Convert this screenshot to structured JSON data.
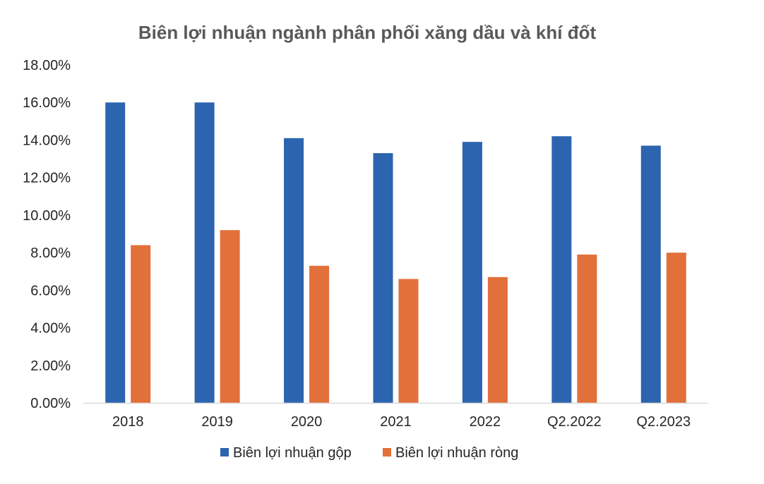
{
  "chart_data": {
    "type": "bar",
    "title": "Biên lợi nhuận ngành phân phối xăng dầu và khí đốt",
    "categories": [
      "2018",
      "2019",
      "2020",
      "2021",
      "2022",
      "Q2.2022",
      "Q2.2023"
    ],
    "series": [
      {
        "name": "Biên lợi nhuận gộp",
        "color": "#2C64AF",
        "values": [
          16.0,
          16.0,
          14.1,
          13.3,
          13.9,
          14.2,
          13.7
        ]
      },
      {
        "name": "Biên lợi nhuận ròng",
        "color": "#E2703A",
        "values": [
          8.4,
          9.2,
          7.3,
          6.6,
          6.7,
          7.9,
          8.0
        ]
      }
    ],
    "ylim": [
      0,
      18
    ],
    "yticks": [
      "0.00%",
      "2.00%",
      "4.00%",
      "6.00%",
      "8.00%",
      "10.00%",
      "12.00%",
      "14.00%",
      "16.00%",
      "18.00%"
    ],
    "grid": false,
    "legend_position": "bottom"
  }
}
